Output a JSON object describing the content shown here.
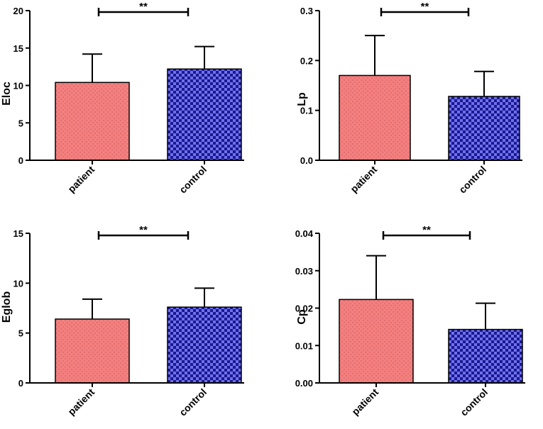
{
  "chart_data": [
    {
      "type": "bar",
      "ylabel": "Eloc",
      "ylim": [
        0,
        20
      ],
      "yticks": [
        "0",
        "5",
        "10",
        "15",
        "20"
      ],
      "categories": [
        "patient",
        "control"
      ],
      "values": [
        10.4,
        12.2
      ],
      "errors": [
        3.8,
        3.0
      ],
      "significance": "**"
    },
    {
      "type": "bar",
      "ylabel": "Lp",
      "ylim": [
        0,
        0.3
      ],
      "yticks": [
        "0.0",
        "0.1",
        "0.2",
        "0.3"
      ],
      "categories": [
        "patient",
        "control"
      ],
      "values": [
        0.17,
        0.128
      ],
      "errors": [
        0.08,
        0.05
      ],
      "significance": "**"
    },
    {
      "type": "bar",
      "ylabel": "Eglob",
      "ylim": [
        0,
        15
      ],
      "yticks": [
        "0",
        "5",
        "10",
        "15"
      ],
      "categories": [
        "patient",
        "control"
      ],
      "values": [
        6.4,
        7.6
      ],
      "errors": [
        2.0,
        1.9
      ],
      "significance": "**"
    },
    {
      "type": "bar",
      "ylabel": "Cp",
      "ylim": [
        0,
        0.04
      ],
      "yticks": [
        "0.00",
        "0.01",
        "0.02",
        "0.03",
        "0.04"
      ],
      "categories": [
        "patient",
        "control"
      ],
      "values": [
        0.0223,
        0.0143
      ],
      "errors": [
        0.0117,
        0.007
      ],
      "significance": "**"
    }
  ],
  "colors": {
    "patient_fill": "#f47f7f",
    "patient_dot": "#c75a5a",
    "control_fill": "#1a1a8c",
    "control_check": "#6f6ff0",
    "axis": "#000000"
  }
}
